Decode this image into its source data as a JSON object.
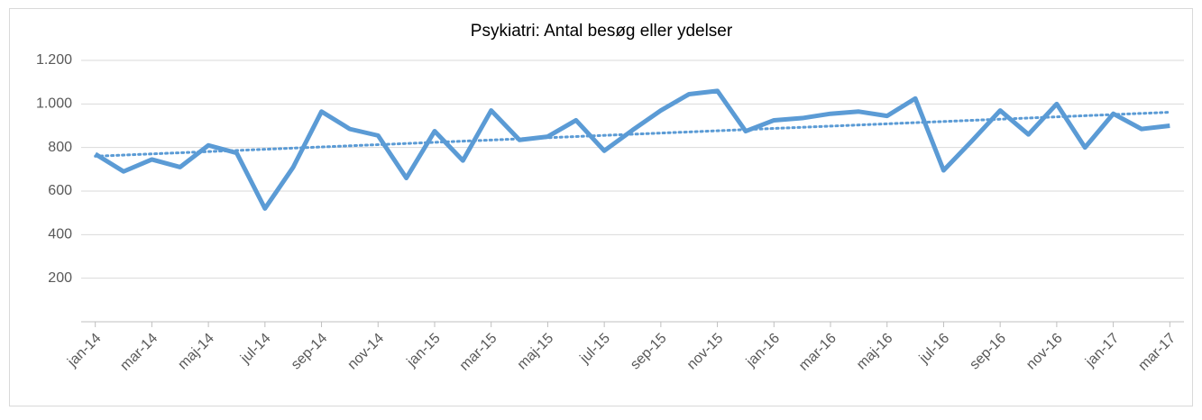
{
  "chart_data": {
    "type": "line",
    "title": "Psykiatri: Antal besøg eller ydelser",
    "categories": [
      "jan-14",
      null,
      "mar-14",
      null,
      "maj-14",
      null,
      "jul-14",
      null,
      "sep-14",
      null,
      "nov-14",
      null,
      "jan-15",
      null,
      "mar-15",
      null,
      "maj-15",
      null,
      "jul-15",
      null,
      "sep-15",
      null,
      "nov-15",
      null,
      "jan-16",
      null,
      "mar-16",
      null,
      "maj-16",
      null,
      "jul-16",
      null,
      "sep-16",
      null,
      "nov-16",
      null,
      "jan-17",
      null,
      "mar-17"
    ],
    "values": [
      770,
      690,
      745,
      710,
      810,
      775,
      520,
      710,
      965,
      885,
      855,
      660,
      875,
      740,
      970,
      835,
      850,
      925,
      785,
      880,
      970,
      1045,
      1060,
      875,
      925,
      935,
      955,
      965,
      945,
      1025,
      695,
      830,
      970,
      860,
      1000,
      800,
      955,
      885,
      900
    ],
    "color": "#5b9bd5",
    "trendline": [
      760,
      962
    ],
    "ylim": [
      0,
      1200
    ],
    "yticks": [
      {
        "value": 200,
        "label": "200"
      },
      {
        "value": 400,
        "label": "400"
      },
      {
        "value": 600,
        "label": "600"
      },
      {
        "value": 800,
        "label": "800"
      },
      {
        "value": 1000,
        "label": "1.000"
      },
      {
        "value": 1200,
        "label": "1.200"
      }
    ],
    "grid": true
  }
}
